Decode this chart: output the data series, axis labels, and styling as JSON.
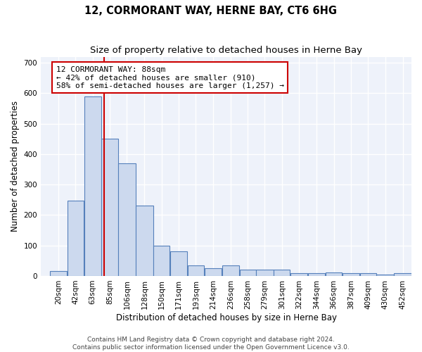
{
  "title": "12, CORMORANT WAY, HERNE BAY, CT6 6HG",
  "subtitle": "Size of property relative to detached houses in Herne Bay",
  "xlabel": "Distribution of detached houses by size in Herne Bay",
  "ylabel": "Number of detached properties",
  "bin_labels": [
    "20sqm",
    "42sqm",
    "63sqm",
    "85sqm",
    "106sqm",
    "128sqm",
    "150sqm",
    "171sqm",
    "193sqm",
    "214sqm",
    "236sqm",
    "258sqm",
    "279sqm",
    "301sqm",
    "322sqm",
    "344sqm",
    "366sqm",
    "387sqm",
    "409sqm",
    "430sqm",
    "452sqm"
  ],
  "bin_edges": [
    20,
    42,
    63,
    85,
    106,
    128,
    150,
    171,
    193,
    214,
    236,
    258,
    279,
    301,
    322,
    344,
    366,
    387,
    409,
    430,
    452,
    474
  ],
  "bar_heights": [
    15,
    248,
    590,
    450,
    370,
    230,
    100,
    80,
    35,
    25,
    35,
    20,
    20,
    20,
    10,
    10,
    12,
    10,
    10,
    5,
    10
  ],
  "bar_color": "#ccd9ee",
  "bar_edge_color": "#5580bb",
  "property_size": 88,
  "red_line_color": "#cc0000",
  "annotation_line1": "12 CORMORANT WAY: 88sqm",
  "annotation_line2": "← 42% of detached houses are smaller (910)",
  "annotation_line3": "58% of semi-detached houses are larger (1,257) →",
  "annotation_box_color": "white",
  "annotation_box_edge": "#cc0000",
  "footer_text": "Contains HM Land Registry data © Crown copyright and database right 2024.\nContains public sector information licensed under the Open Government Licence v3.0.",
  "ylim": [
    0,
    720
  ],
  "yticks": [
    0,
    100,
    200,
    300,
    400,
    500,
    600,
    700
  ],
  "background_color": "#eef2fa",
  "grid_color": "#ffffff",
  "title_fontsize": 10.5,
  "subtitle_fontsize": 9.5,
  "axis_label_fontsize": 8.5,
  "tick_fontsize": 7.5,
  "annotation_fontsize": 8,
  "footer_fontsize": 6.5
}
